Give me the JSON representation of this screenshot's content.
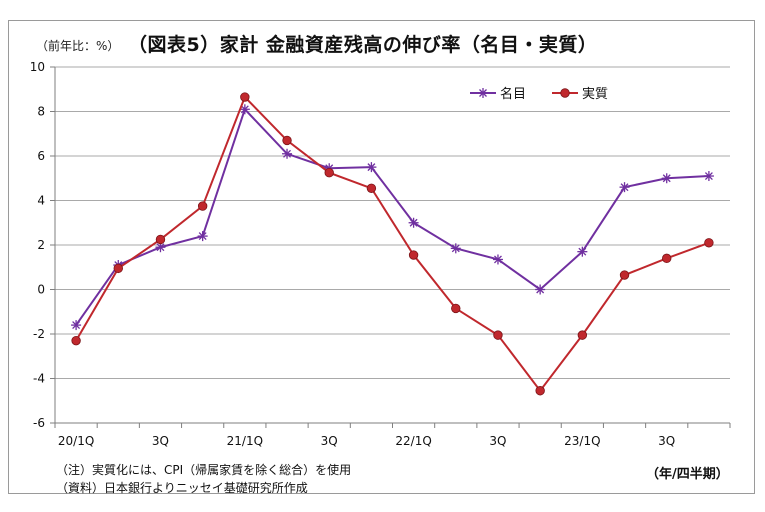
{
  "chart_data": {
    "type": "line",
    "title": "（図表5）家計 金融資産残高の伸び率（名目・実質）",
    "ylabel": "（前年比：%）",
    "xlabel": "（年/四半期）",
    "ylim": [
      -6,
      10
    ],
    "yticks": [
      -6,
      -4,
      -2,
      0,
      2,
      4,
      6,
      8,
      10
    ],
    "grid": true,
    "legend_position": "top-right",
    "x": [
      "20/1Q",
      "20/2Q",
      "20/3Q",
      "20/4Q",
      "21/1Q",
      "21/2Q",
      "21/3Q",
      "21/4Q",
      "22/1Q",
      "22/2Q",
      "22/3Q",
      "22/4Q",
      "23/1Q",
      "23/2Q",
      "23/3Q",
      "23/4Q"
    ],
    "xtick_labels": [
      {
        "index": 0,
        "label": "20/1Q"
      },
      {
        "index": 2,
        "label": "3Q"
      },
      {
        "index": 4,
        "label": "21/1Q"
      },
      {
        "index": 6,
        "label": "3Q"
      },
      {
        "index": 8,
        "label": "22/1Q"
      },
      {
        "index": 10,
        "label": "3Q"
      },
      {
        "index": 12,
        "label": "23/1Q"
      },
      {
        "index": 14,
        "label": "3Q"
      }
    ],
    "series": [
      {
        "name": "名目",
        "color": "#7030a0",
        "marker": "star",
        "values": [
          -1.6,
          1.1,
          1.9,
          2.4,
          8.1,
          6.1,
          5.45,
          5.5,
          3.0,
          1.85,
          1.35,
          0.0,
          1.7,
          4.6,
          5.0,
          5.1
        ]
      },
      {
        "name": "実質",
        "color": "#c0282d",
        "marker": "circle",
        "values": [
          -2.3,
          0.95,
          2.25,
          3.75,
          8.65,
          6.7,
          5.25,
          4.55,
          1.55,
          -0.85,
          -2.05,
          -4.55,
          -2.05,
          0.65,
          1.4,
          2.1
        ]
      }
    ]
  },
  "header": {
    "unit_label": "（前年比：%）",
    "title": "（図表5）家計 金融資産残高の伸び率（名目・実質）"
  },
  "footer": {
    "xaxis_unit": "（年/四半期）",
    "note_1": "（注）実質化には、CPI（帰属家賃を除く総合）を使用",
    "note_2": "（資料）日本銀行よりニッセイ基礎研究所作成"
  },
  "colors": {
    "grid": "#8c8c8c",
    "axis": "#7f7f7f",
    "frame": "#9a9a9a"
  }
}
